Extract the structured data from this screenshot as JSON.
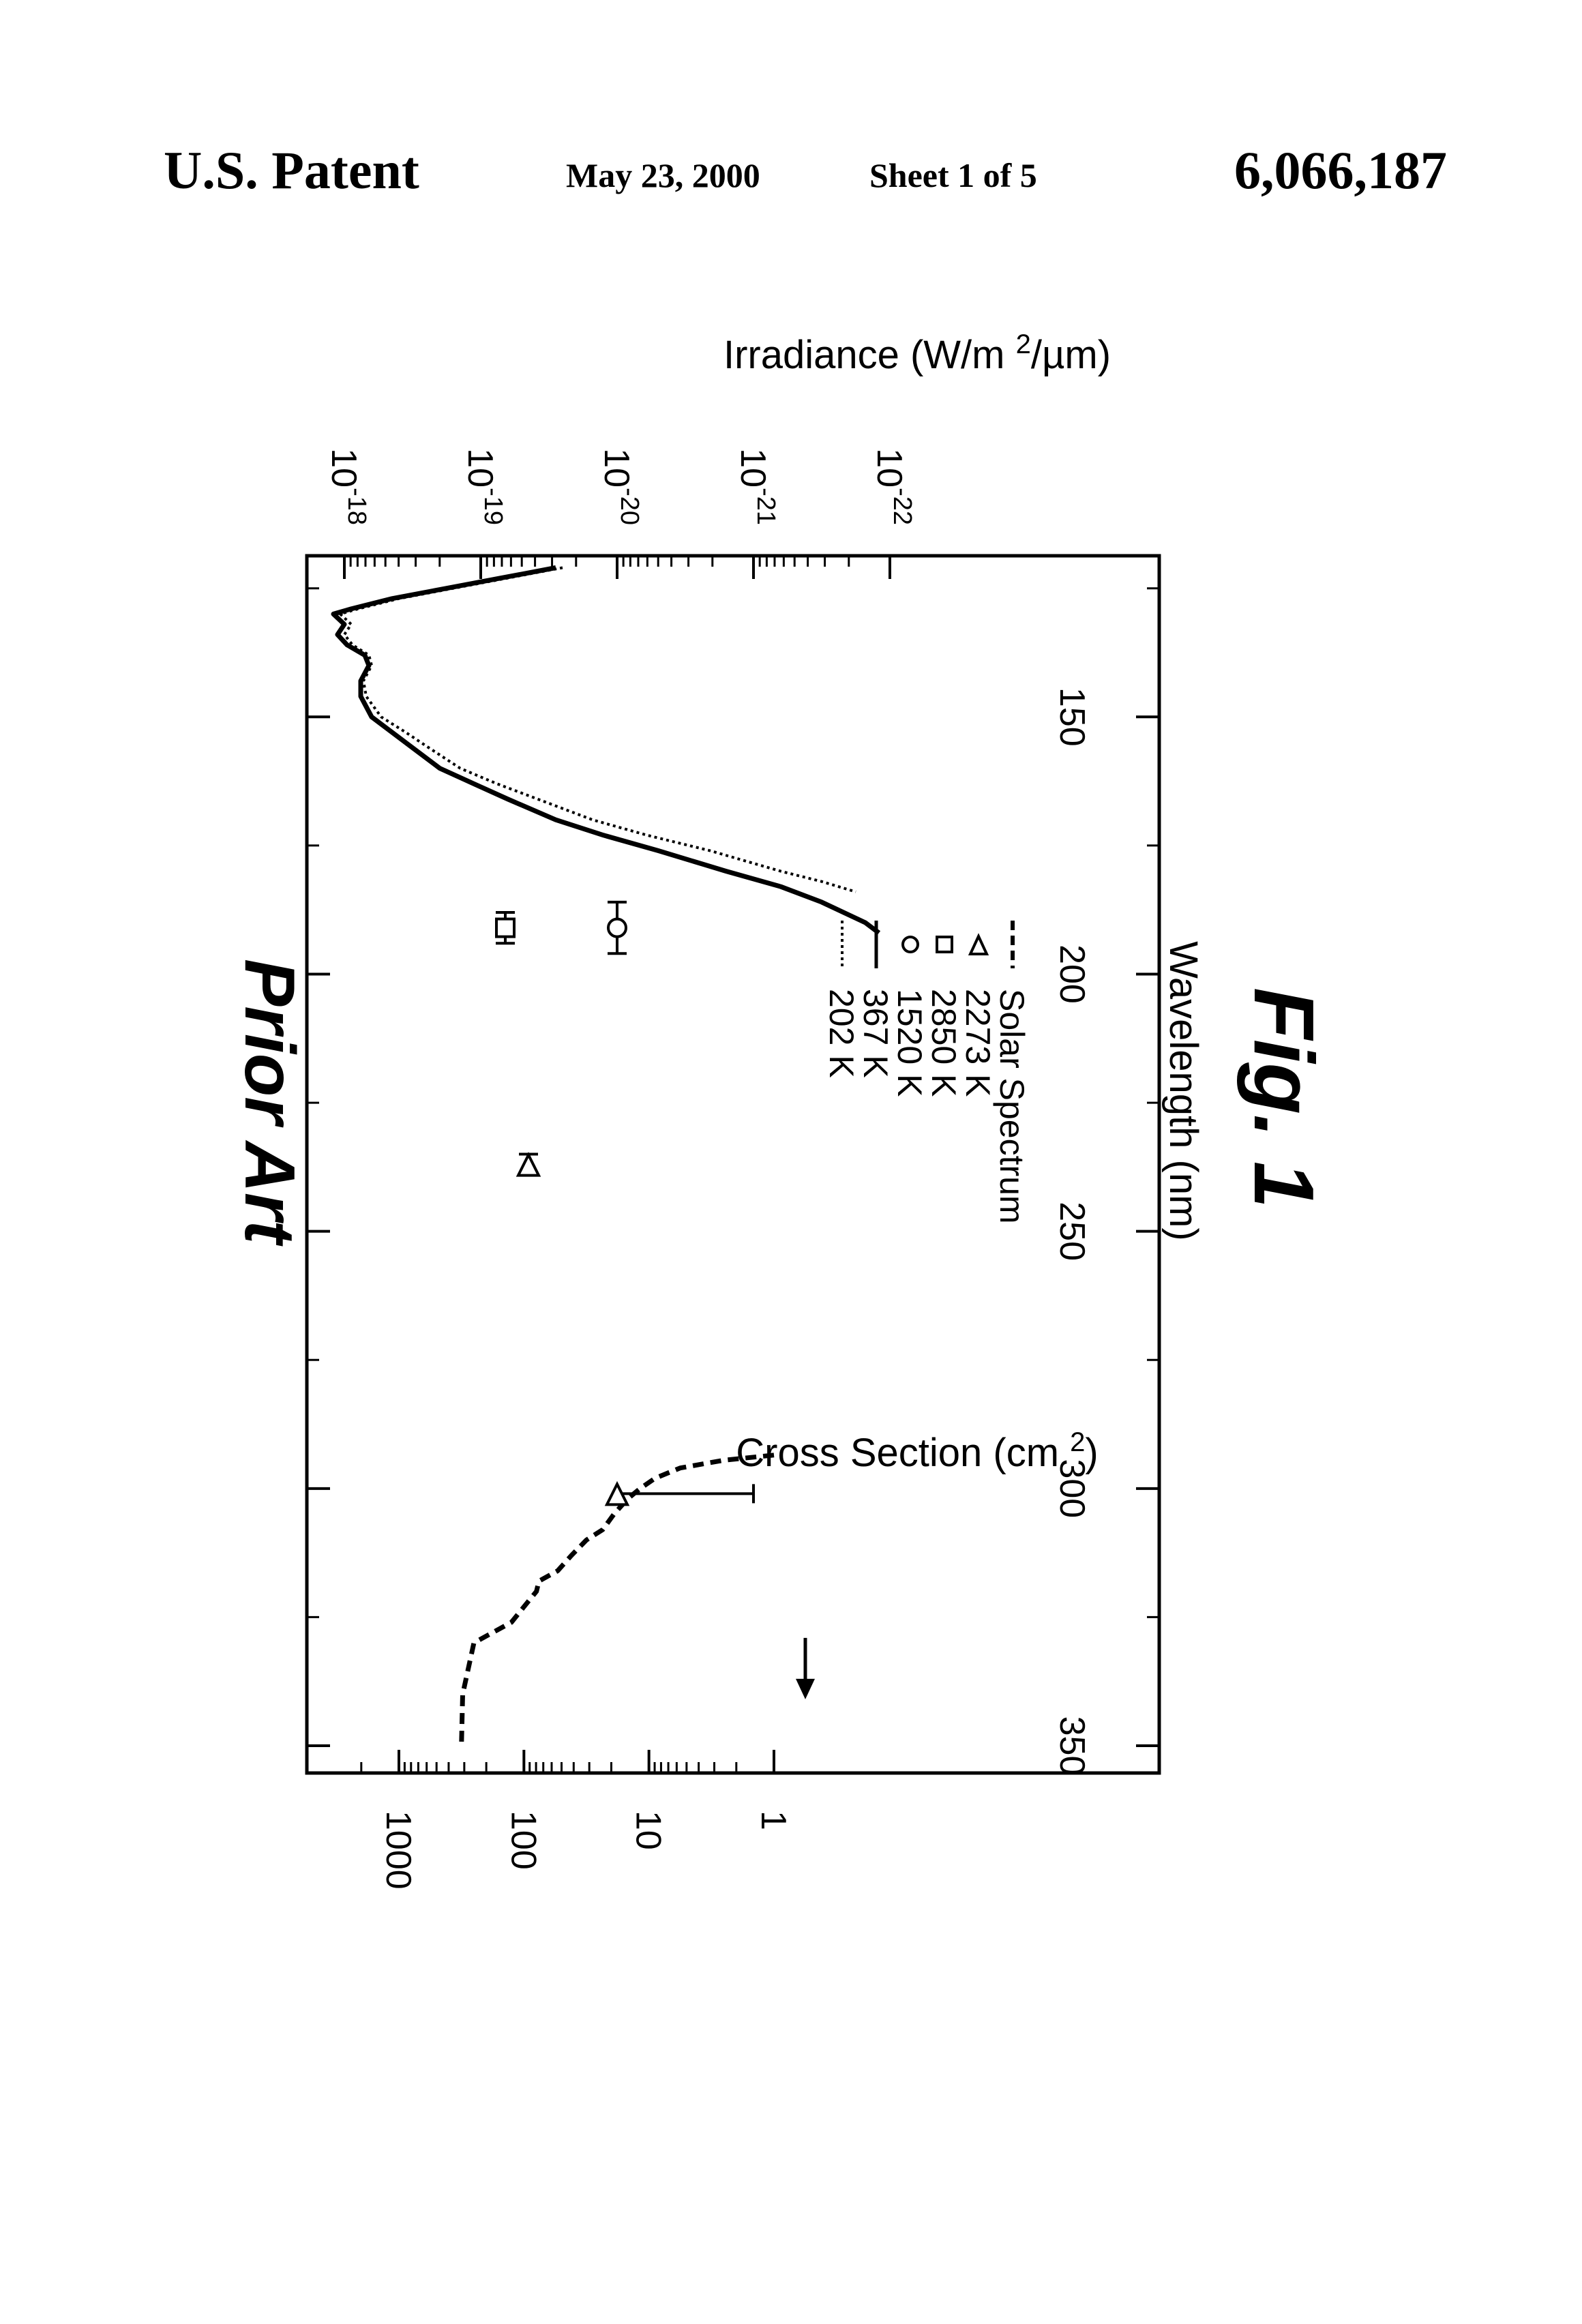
{
  "header": {
    "patent_label": "U.S. Patent",
    "date": "May 23, 2000",
    "sheet": "Sheet 1 of 5",
    "patent_number": "6,066,187"
  },
  "figure": {
    "caption_label": "Prior Art",
    "fig_label": "Fig. 1"
  },
  "chart_data": {
    "type": "line",
    "title": "Prior Art",
    "xlabel": "Wavelength (nm)",
    "ylabel": "Cross Section (cm2)",
    "y2label": "Irradiance (W/m2/µm)",
    "xlim": [
      120,
      350
    ],
    "ylim_log10": [
      -22,
      -18
    ],
    "y2lim_log10": [
      0,
      3.4
    ],
    "x_ticks": [
      150,
      200,
      250,
      300,
      350
    ],
    "x_tick_labels": [
      "150",
      "200",
      "250",
      "300",
      "350"
    ],
    "y_ticks_log10": [
      -18,
      -19,
      -20,
      -21,
      -22
    ],
    "y_tick_base": "10",
    "y_tick_exponents": [
      "-18",
      "-19",
      "-20",
      "-21",
      "-22"
    ],
    "y2_ticks_log10": [
      3,
      2,
      1,
      0
    ],
    "y2_tick_labels": [
      "1000",
      "100",
      "10",
      "1"
    ],
    "legend_position": "lower-center",
    "legend": [
      {
        "label": "202 K",
        "marker": "dotted-line"
      },
      {
        "label": "367 K",
        "marker": "solid-line"
      },
      {
        "label": "1520 K",
        "marker": "circle"
      },
      {
        "label": "2850 K",
        "marker": "square"
      },
      {
        "label": "2273 K",
        "marker": "triangle"
      },
      {
        "label": "Solar Spectrum",
        "marker": "dashed-line"
      }
    ],
    "series": [
      {
        "name": "367 K",
        "style": "solid",
        "axis": "left",
        "x": [
          121,
          123,
          125,
          127,
          129,
          130,
          132,
          134,
          136,
          138,
          140,
          143,
          146,
          150,
          153,
          156,
          160,
          163,
          166,
          170,
          173,
          176,
          180,
          183,
          186,
          190,
          192
        ],
        "y_log10": [
          -19.55,
          -19.15,
          -18.75,
          -18.35,
          -18.05,
          -17.92,
          -18.0,
          -17.95,
          -18.02,
          -18.15,
          -18.18,
          -18.12,
          -18.12,
          -18.2,
          -18.35,
          -18.5,
          -18.7,
          -18.95,
          -19.2,
          -19.55,
          -19.9,
          -20.3,
          -20.8,
          -21.2,
          -21.5,
          -21.82,
          -21.92
        ]
      },
      {
        "name": "202 K",
        "style": "dotted",
        "axis": "left",
        "x": [
          121,
          123,
          125,
          127,
          129,
          130,
          132,
          134,
          136,
          138,
          140,
          143,
          146,
          150,
          153,
          156,
          160,
          163,
          166,
          170,
          173,
          176,
          180,
          182,
          184
        ],
        "y_log10": [
          -19.6,
          -19.2,
          -18.8,
          -18.4,
          -18.1,
          -17.97,
          -18.05,
          -18.0,
          -18.06,
          -18.18,
          -18.2,
          -18.14,
          -18.16,
          -18.27,
          -18.45,
          -18.62,
          -18.85,
          -19.12,
          -19.42,
          -19.82,
          -20.22,
          -20.68,
          -21.2,
          -21.5,
          -21.75
        ]
      },
      {
        "name": "Solar Spectrum",
        "style": "dashed",
        "axis": "right",
        "x": [
          293.5,
          294.5,
          296,
          298,
          300,
          302,
          305,
          308,
          310,
          313,
          316,
          318,
          320,
          323,
          326,
          330,
          340,
          350
        ],
        "y_log10": [
          0.0,
          0.4,
          0.75,
          0.95,
          1.07,
          1.17,
          1.28,
          1.37,
          1.5,
          1.62,
          1.73,
          1.88,
          1.9,
          2.0,
          2.1,
          2.4,
          2.49,
          2.5
        ]
      }
    ],
    "points": [
      {
        "name": "1520 K",
        "marker": "circle",
        "x": 191,
        "y_log10": -20.0,
        "xerr": [
          186,
          196
        ]
      },
      {
        "name": "2850 K",
        "marker": "square",
        "x": 191,
        "y_log10": -19.18,
        "xerr": [
          188,
          194
        ]
      },
      {
        "name": "2273 K",
        "marker": "triangle",
        "x": 237,
        "y_log10": -19.35,
        "xerr": [
          235,
          239
        ]
      },
      {
        "name": "2273 K",
        "marker": "triangle",
        "x": 301,
        "y_log10": -20.0,
        "xerr_down": [
          300,
          300
        ],
        "yerr_log10": [
          -21.0,
          -20.0
        ]
      }
    ]
  }
}
